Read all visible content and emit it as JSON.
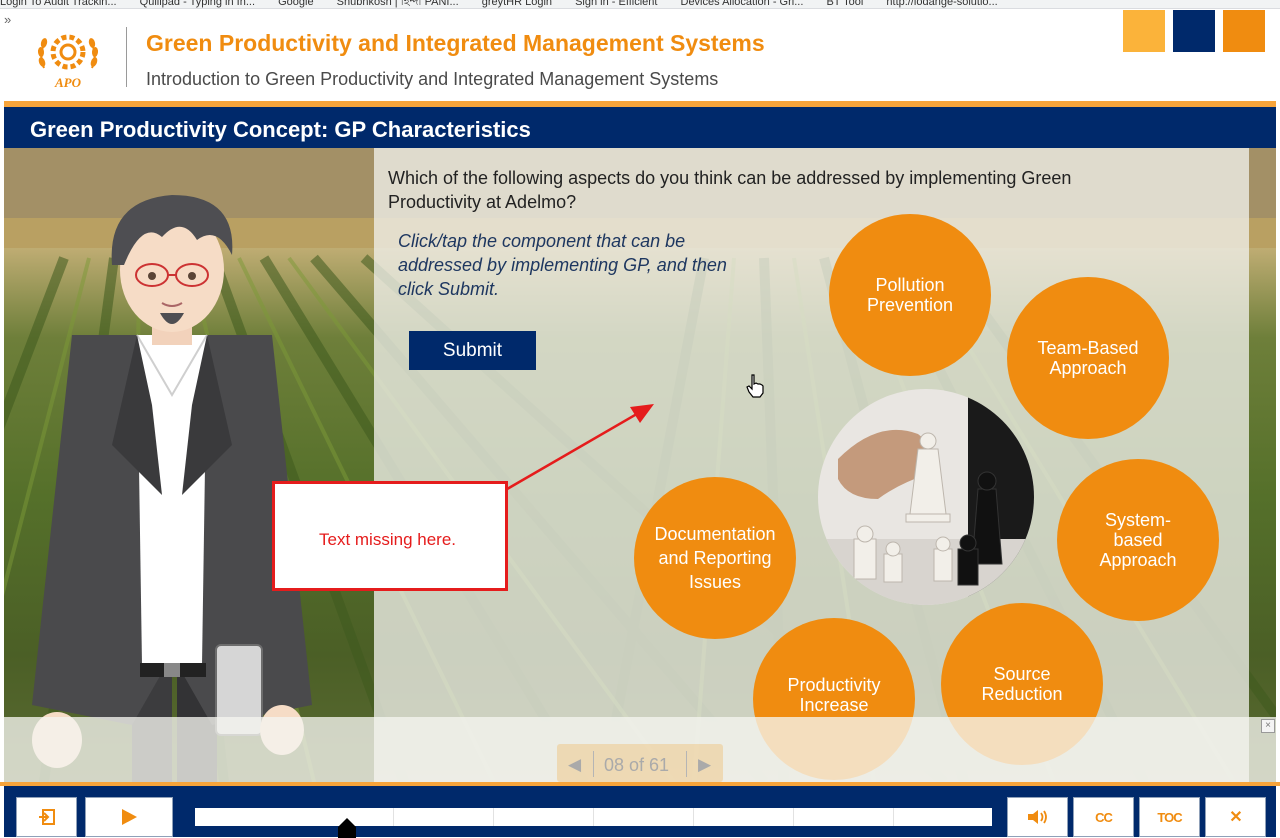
{
  "browser": {
    "bookmarks": [
      "Login To Audit Trackin...",
      "Quillpad - Typing in In...",
      "Google",
      "Shubhkosh | হিন্দী PANI...",
      "greytHR Login",
      "Sign in - Efficient",
      "Devices Allocation - Gri...",
      "BT Tool",
      "http://lodange-solutio..."
    ],
    "more_chevron": "»"
  },
  "course": {
    "title": "Green Productivity and Integrated Management Systems",
    "subtitle": "Introduction to Green Productivity and Integrated Management Systems",
    "logo_text": "APO"
  },
  "slide": {
    "title": "Green Productivity Concept: GP Characteristics",
    "question": "Which of the following aspects do you think can be addressed by implementing Green Productivity at Adelmo?",
    "instruction": "Click/tap the component that can be addressed by implementing GP, and then click Submit.",
    "submit_label": "Submit",
    "options": {
      "pollution": "Pollution Prevention",
      "team": "Team-Based Approach",
      "system": "System-based Approach",
      "source": "Source Reduction",
      "productivity": "Productivity Increase",
      "documentation": "Documentation and Reporting Issues"
    },
    "callout_text": "Text missing here.",
    "pager": {
      "text": "08 of 61",
      "prev": "◀",
      "next": "▶"
    },
    "close_small": "×"
  },
  "player": {
    "cc_label": "CC",
    "toc_label": "TOC",
    "close_label": "✕",
    "seek_progress_fraction": 0.19
  },
  "colors": {
    "accent_orange": "#f08c10",
    "navy": "#00296b",
    "callout_red": "#e51c1c"
  }
}
